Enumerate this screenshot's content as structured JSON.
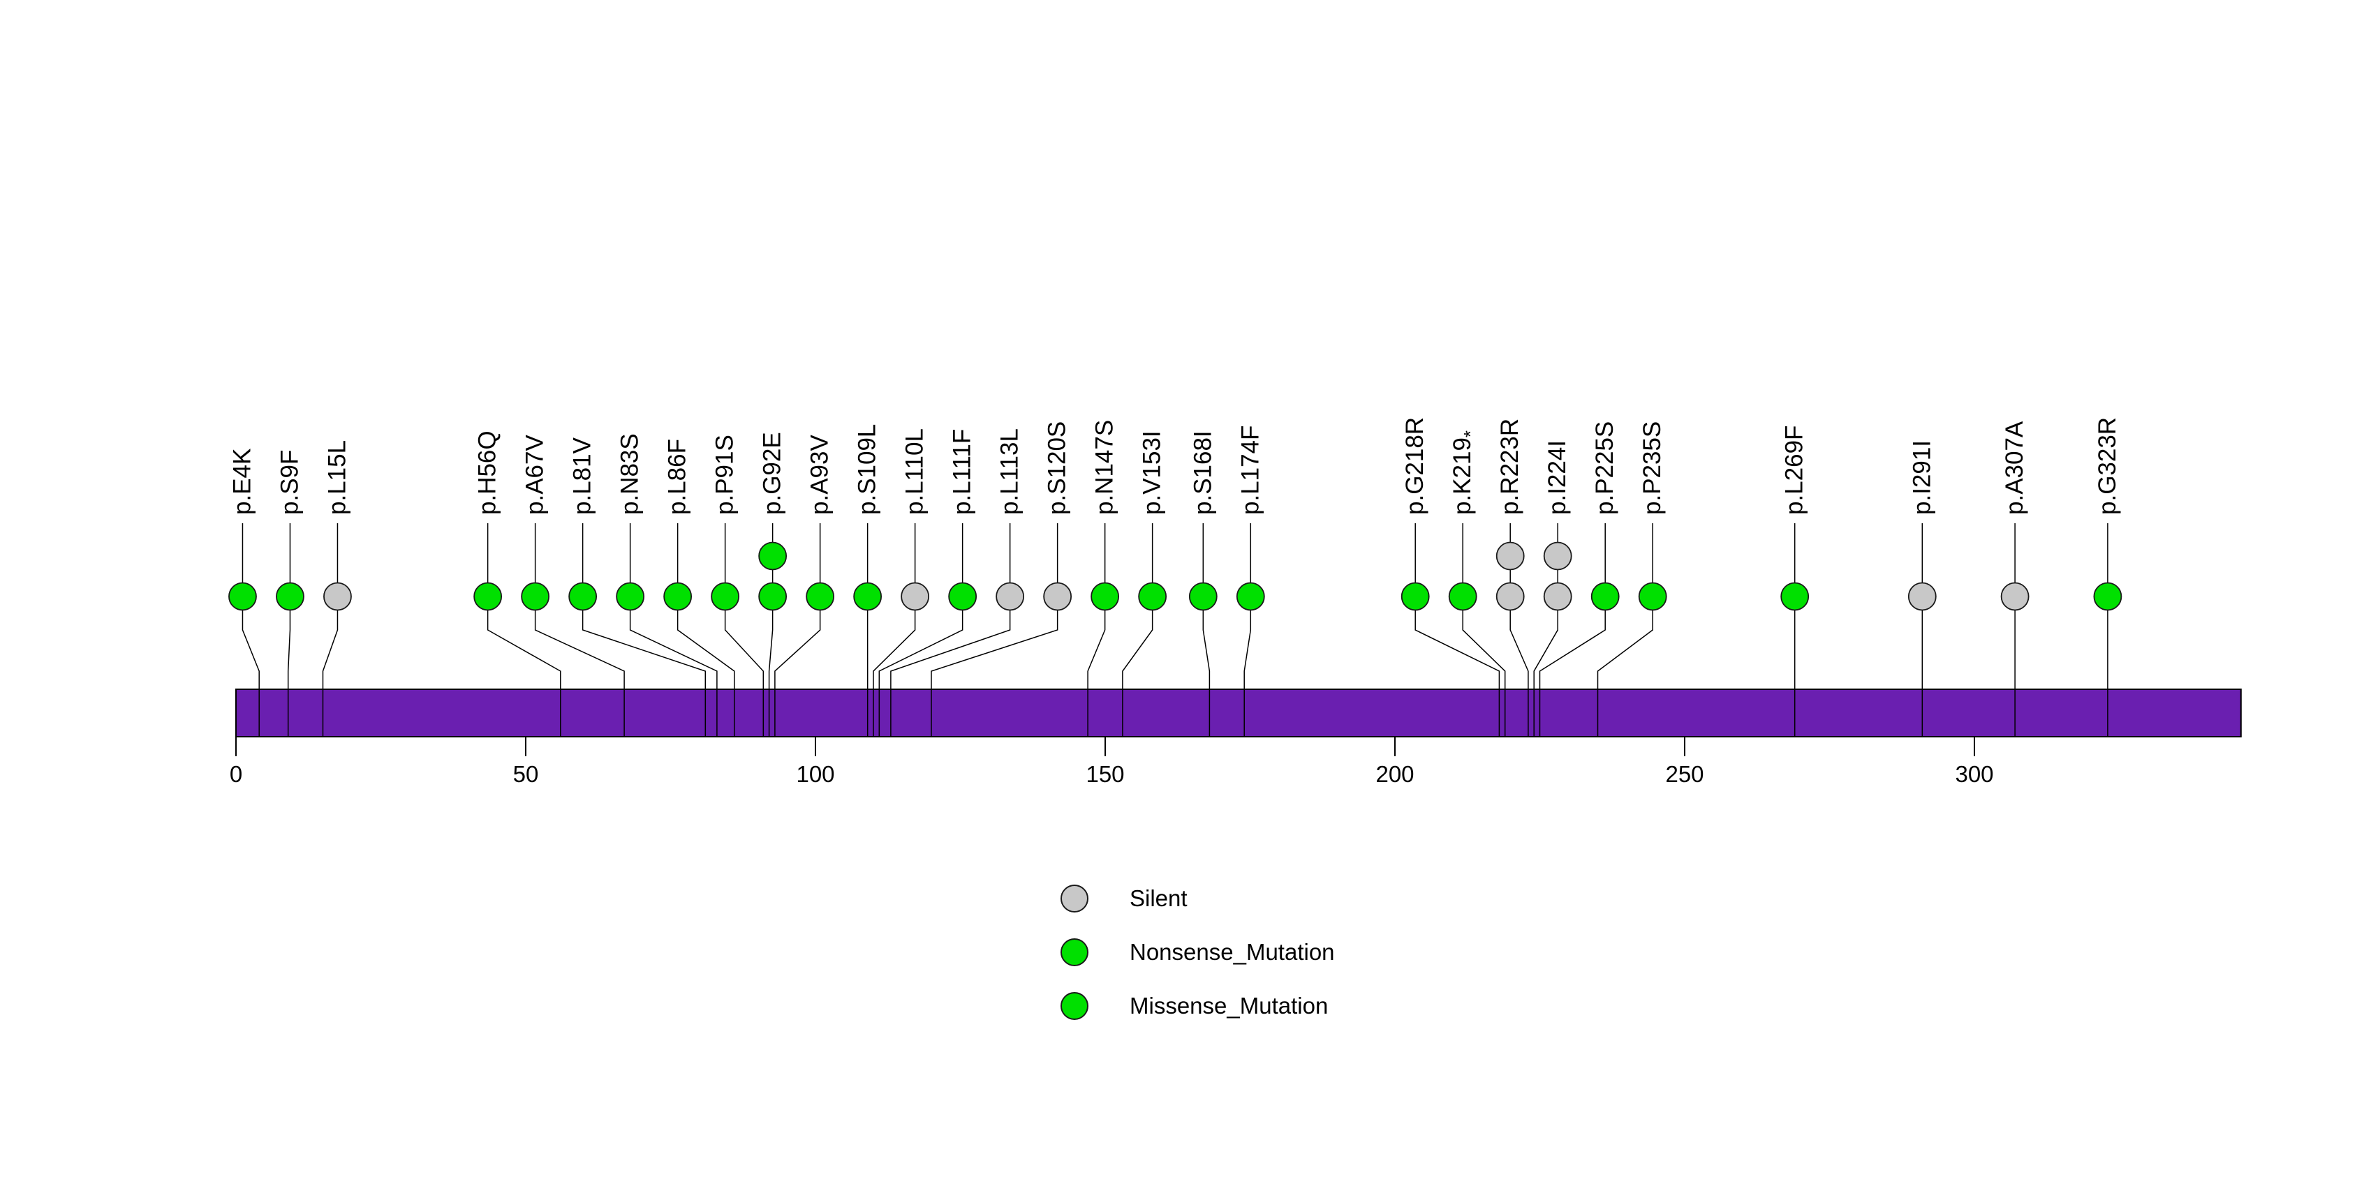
{
  "chart_data": {
    "type": "lollipop",
    "title": "",
    "protein_bar": {
      "start": 0,
      "length": 346,
      "color": "#6A1FB0",
      "border_color": "#000000"
    },
    "x_axis": {
      "min": 0,
      "max": 346,
      "ticks": [
        0,
        50,
        100,
        150,
        200,
        250,
        300
      ]
    },
    "stem_color": "#000000",
    "type_colors": {
      "Silent": "#C8C8C8",
      "Nonsense_Mutation": "#00E000",
      "Missense_Mutation": "#00E000"
    },
    "legend": [
      {
        "label": "Silent",
        "type": "Silent",
        "color": "#C8C8C8"
      },
      {
        "label": "Nonsense_Mutation",
        "type": "Nonsense_Mutation",
        "color": "#00E000"
      },
      {
        "label": "Missense_Mutation",
        "type": "Missense_Mutation",
        "color": "#00E000"
      }
    ],
    "mutations": [
      {
        "label": "p.E4K",
        "position": 4,
        "count": 1,
        "type": "Missense_Mutation"
      },
      {
        "label": "p.S9F",
        "position": 9,
        "count": 1,
        "type": "Missense_Mutation"
      },
      {
        "label": "p.L15L",
        "position": 15,
        "count": 1,
        "type": "Silent"
      },
      {
        "label": "p.H56Q",
        "position": 56,
        "count": 1,
        "type": "Missense_Mutation"
      },
      {
        "label": "p.A67V",
        "position": 67,
        "count": 1,
        "type": "Missense_Mutation"
      },
      {
        "label": "p.L81V",
        "position": 81,
        "count": 1,
        "type": "Missense_Mutation"
      },
      {
        "label": "p.N83S",
        "position": 83,
        "count": 1,
        "type": "Missense_Mutation"
      },
      {
        "label": "p.L86F",
        "position": 86,
        "count": 1,
        "type": "Missense_Mutation"
      },
      {
        "label": "p.P91S",
        "position": 91,
        "count": 1,
        "type": "Missense_Mutation"
      },
      {
        "label": "p.G92E",
        "position": 92,
        "count": 2,
        "type": "Missense_Mutation"
      },
      {
        "label": "p.A93V",
        "position": 93,
        "count": 1,
        "type": "Missense_Mutation"
      },
      {
        "label": "p.S109L",
        "position": 109,
        "count": 1,
        "type": "Missense_Mutation"
      },
      {
        "label": "p.L110L",
        "position": 110,
        "count": 1,
        "type": "Silent"
      },
      {
        "label": "p.L111F",
        "position": 111,
        "count": 1,
        "type": "Missense_Mutation"
      },
      {
        "label": "p.L113L",
        "position": 113,
        "count": 1,
        "type": "Silent"
      },
      {
        "label": "p.S120S",
        "position": 120,
        "count": 1,
        "type": "Silent"
      },
      {
        "label": "p.N147S",
        "position": 147,
        "count": 1,
        "type": "Missense_Mutation"
      },
      {
        "label": "p.V153I",
        "position": 153,
        "count": 1,
        "type": "Missense_Mutation"
      },
      {
        "label": "p.S168I",
        "position": 168,
        "count": 1,
        "type": "Missense_Mutation"
      },
      {
        "label": "p.L174F",
        "position": 174,
        "count": 1,
        "type": "Missense_Mutation"
      },
      {
        "label": "p.G218R",
        "position": 218,
        "count": 1,
        "type": "Missense_Mutation"
      },
      {
        "label": "p.K219*",
        "position": 219,
        "count": 1,
        "type": "Nonsense_Mutation"
      },
      {
        "label": "p.R223R",
        "position": 223,
        "count": 2,
        "type": "Silent"
      },
      {
        "label": "p.I224I",
        "position": 224,
        "count": 2,
        "type": "Silent"
      },
      {
        "label": "p.P225S",
        "position": 225,
        "count": 1,
        "type": "Missense_Mutation"
      },
      {
        "label": "p.P235S",
        "position": 235,
        "count": 1,
        "type": "Missense_Mutation"
      },
      {
        "label": "p.L269F",
        "position": 269,
        "count": 1,
        "type": "Missense_Mutation"
      },
      {
        "label": "p.I291I",
        "position": 291,
        "count": 1,
        "type": "Silent"
      },
      {
        "label": "p.A307A",
        "position": 307,
        "count": 1,
        "type": "Silent"
      },
      {
        "label": "p.G323R",
        "position": 323,
        "count": 1,
        "type": "Missense_Mutation"
      }
    ]
  }
}
